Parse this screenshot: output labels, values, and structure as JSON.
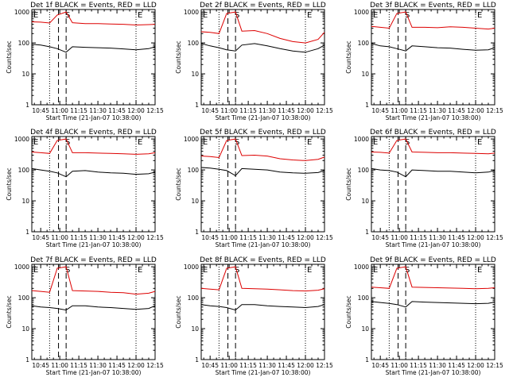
{
  "figure_title": "",
  "chart_data": [
    {
      "type": "line",
      "title": "Det 1f BLACK = Events, RED = LLD",
      "xlabel": "Start Time (21-Jan-07 10:38:00)",
      "ylabel": "Counts/sec",
      "x_ticks": [
        "10:45",
        "11:00",
        "11:15",
        "11:30",
        "11:45",
        "12:00",
        "12:15"
      ],
      "x_range": [
        "10:38",
        "12:15"
      ],
      "y_ticks": [
        "1",
        "10",
        "100",
        "1000"
      ],
      "y_scale": "log",
      "ylim": [
        1,
        1200
      ],
      "markers": [
        {
          "label": "E",
          "time": "10:38"
        },
        {
          "label": "S",
          "time": "11:03"
        },
        {
          "label": "E",
          "time": "12:00"
        }
      ],
      "dotted_lines": [
        "10:52",
        "12:00"
      ],
      "dashed_lines": [
        "10:59",
        "11:05"
      ],
      "series": [
        {
          "name": "Events",
          "color": "#000000",
          "x": [
            "10:38",
            "10:45",
            "10:52",
            "10:58",
            "11:05",
            "11:10",
            "11:20",
            "11:30",
            "11:40",
            "11:50",
            "12:00",
            "12:10",
            "12:15"
          ],
          "values": [
            90,
            85,
            75,
            65,
            50,
            75,
            72,
            70,
            68,
            64,
            60,
            65,
            75
          ]
        },
        {
          "name": "LLD",
          "color": "#dd0000",
          "x": [
            "10:38",
            "10:45",
            "10:52",
            "10:58",
            "11:05",
            "11:10",
            "11:20",
            "11:30",
            "11:40",
            "11:50",
            "12:00",
            "12:10",
            "12:15"
          ],
          "values": [
            480,
            470,
            440,
            800,
            1000,
            450,
            420,
            420,
            410,
            400,
            380,
            390,
            400
          ]
        }
      ]
    },
    {
      "type": "line",
      "title": "Det 2f BLACK = Events, RED = LLD",
      "xlabel": "Start Time (21-Jan-07 10:38:00)",
      "ylabel": "Counts/sec",
      "x_ticks": [
        "10:45",
        "11:00",
        "11:15",
        "11:30",
        "11:45",
        "12:00",
        "12:15"
      ],
      "x_range": [
        "10:38",
        "12:15"
      ],
      "y_ticks": [
        "1",
        "10",
        "100",
        "1000"
      ],
      "y_scale": "log",
      "ylim": [
        1,
        1200
      ],
      "markers": [
        {
          "label": "E",
          "time": "10:38"
        },
        {
          "label": "S",
          "time": "11:03"
        },
        {
          "label": "E",
          "time": "12:00"
        }
      ],
      "dotted_lines": [
        "10:52",
        "12:00"
      ],
      "dashed_lines": [
        "10:59",
        "11:05"
      ],
      "series": [
        {
          "name": "Events",
          "color": "#000000",
          "x": [
            "10:38",
            "10:45",
            "10:52",
            "10:58",
            "11:05",
            "11:10",
            "11:20",
            "11:30",
            "11:40",
            "11:50",
            "12:00",
            "12:10",
            "12:15"
          ],
          "values": [
            95,
            80,
            70,
            60,
            55,
            85,
            95,
            80,
            65,
            55,
            50,
            65,
            85
          ]
        },
        {
          "name": "LLD",
          "color": "#dd0000",
          "x": [
            "10:38",
            "10:45",
            "10:52",
            "10:58",
            "11:05",
            "11:10",
            "11:20",
            "11:30",
            "11:40",
            "11:50",
            "12:00",
            "12:10",
            "12:15"
          ],
          "values": [
            230,
            220,
            200,
            900,
            1000,
            240,
            250,
            200,
            140,
            110,
            100,
            130,
            220
          ]
        }
      ]
    },
    {
      "type": "line",
      "title": "Det 3f BLACK = Events, RED = LLD",
      "xlabel": "Start Time (21-Jan-07 10:38:00)",
      "ylabel": "Counts/sec",
      "x_ticks": [
        "10:45",
        "11:00",
        "11:15",
        "11:30",
        "11:45",
        "12:00",
        "12:15"
      ],
      "x_range": [
        "10:38",
        "12:15"
      ],
      "y_ticks": [
        "1",
        "10",
        "100",
        "1000"
      ],
      "y_scale": "log",
      "ylim": [
        1,
        1200
      ],
      "markers": [
        {
          "label": "E",
          "time": "10:38"
        },
        {
          "label": "S",
          "time": "11:03"
        },
        {
          "label": "E",
          "time": "12:00"
        }
      ],
      "dotted_lines": [
        "10:52",
        "12:00"
      ],
      "dashed_lines": [
        "10:59",
        "11:05"
      ],
      "series": [
        {
          "name": "Events",
          "color": "#000000",
          "x": [
            "10:38",
            "10:45",
            "10:52",
            "10:58",
            "11:05",
            "11:10",
            "11:20",
            "11:30",
            "11:40",
            "11:50",
            "12:00",
            "12:10",
            "12:15"
          ],
          "values": [
            95,
            80,
            75,
            65,
            55,
            80,
            75,
            70,
            68,
            62,
            58,
            60,
            70
          ]
        },
        {
          "name": "LLD",
          "color": "#dd0000",
          "x": [
            "10:38",
            "10:45",
            "10:52",
            "10:58",
            "11:05",
            "11:10",
            "11:20",
            "11:30",
            "11:40",
            "11:50",
            "12:00",
            "12:10",
            "12:15"
          ],
          "values": [
            340,
            320,
            300,
            900,
            1000,
            320,
            320,
            310,
            330,
            320,
            300,
            280,
            300
          ]
        }
      ]
    },
    {
      "type": "line",
      "title": "Det 4f BLACK = Events, RED = LLD",
      "xlabel": "Start Time (21-Jan-07 10:38:00)",
      "ylabel": "Counts/sec",
      "x_ticks": [
        "10:45",
        "11:00",
        "11:15",
        "11:30",
        "11:45",
        "12:00",
        "12:15"
      ],
      "x_range": [
        "10:38",
        "12:15"
      ],
      "y_ticks": [
        "1",
        "10",
        "100",
        "1000"
      ],
      "y_scale": "log",
      "ylim": [
        1,
        1200
      ],
      "markers": [
        {
          "label": "E",
          "time": "10:38"
        },
        {
          "label": "S",
          "time": "11:03"
        },
        {
          "label": "E",
          "time": "12:00"
        }
      ],
      "dotted_lines": [
        "10:52",
        "12:00"
      ],
      "dashed_lines": [
        "10:59",
        "11:05"
      ],
      "series": [
        {
          "name": "Events",
          "color": "#000000",
          "x": [
            "10:38",
            "10:45",
            "10:52",
            "10:58",
            "11:05",
            "11:10",
            "11:20",
            "11:30",
            "11:40",
            "11:50",
            "12:00",
            "12:10",
            "12:15"
          ],
          "values": [
            110,
            100,
            90,
            80,
            60,
            90,
            95,
            85,
            80,
            78,
            72,
            75,
            85
          ]
        },
        {
          "name": "LLD",
          "color": "#dd0000",
          "x": [
            "10:38",
            "10:45",
            "10:52",
            "10:58",
            "11:05",
            "11:10",
            "11:20",
            "11:30",
            "11:40",
            "11:50",
            "12:00",
            "12:10",
            "12:15"
          ],
          "values": [
            380,
            360,
            340,
            900,
            1000,
            360,
            360,
            350,
            340,
            330,
            320,
            330,
            360
          ]
        }
      ]
    },
    {
      "type": "line",
      "title": "Det 5f BLACK = Events, RED = LLD",
      "xlabel": "Start Time (21-Jan-07 10:38:00)",
      "ylabel": "Counts/sec",
      "x_ticks": [
        "10:45",
        "11:00",
        "11:15",
        "11:30",
        "11:45",
        "12:00",
        "12:15"
      ],
      "x_range": [
        "10:38",
        "12:15"
      ],
      "y_ticks": [
        "1",
        "10",
        "100",
        "1000"
      ],
      "y_scale": "log",
      "ylim": [
        1,
        1200
      ],
      "markers": [
        {
          "label": "E",
          "time": "10:38"
        },
        {
          "label": "S",
          "time": "11:03"
        },
        {
          "label": "E",
          "time": "12:00"
        }
      ],
      "dotted_lines": [
        "10:52",
        "12:00"
      ],
      "dashed_lines": [
        "10:59",
        "11:05"
      ],
      "series": [
        {
          "name": "Events",
          "color": "#000000",
          "x": [
            "10:38",
            "10:45",
            "10:52",
            "10:58",
            "11:05",
            "11:10",
            "11:20",
            "11:30",
            "11:40",
            "11:50",
            "12:00",
            "12:10",
            "12:15"
          ],
          "values": [
            120,
            115,
            105,
            95,
            65,
            110,
            105,
            100,
            85,
            80,
            78,
            82,
            95
          ]
        },
        {
          "name": "LLD",
          "color": "#dd0000",
          "x": [
            "10:38",
            "10:45",
            "10:52",
            "10:58",
            "11:05",
            "11:10",
            "11:20",
            "11:30",
            "11:40",
            "11:50",
            "12:00",
            "12:10",
            "12:15"
          ],
          "values": [
            280,
            270,
            250,
            900,
            1000,
            290,
            300,
            280,
            230,
            210,
            200,
            220,
            260
          ]
        }
      ]
    },
    {
      "type": "line",
      "title": "Det 6f BLACK = Events, RED = LLD",
      "xlabel": "Start Time (21-Jan-07 10:38:00)",
      "ylabel": "Counts/sec",
      "x_ticks": [
        "10:45",
        "11:00",
        "11:15",
        "11:30",
        "11:45",
        "12:00",
        "12:15"
      ],
      "x_range": [
        "10:38",
        "12:15"
      ],
      "y_ticks": [
        "1",
        "10",
        "100",
        "1000"
      ],
      "y_scale": "log",
      "ylim": [
        1,
        1200
      ],
      "markers": [
        {
          "label": "E",
          "time": "10:38"
        },
        {
          "label": "S",
          "time": "11:03"
        },
        {
          "label": "E",
          "time": "12:00"
        }
      ],
      "dotted_lines": [
        "10:52",
        "12:00"
      ],
      "dashed_lines": [
        "10:59",
        "11:05"
      ],
      "series": [
        {
          "name": "Events",
          "color": "#000000",
          "x": [
            "10:38",
            "10:45",
            "10:52",
            "10:58",
            "11:05",
            "11:10",
            "11:20",
            "11:30",
            "11:40",
            "11:50",
            "12:00",
            "12:10",
            "12:15"
          ],
          "values": [
            110,
            100,
            95,
            85,
            60,
            100,
            95,
            90,
            90,
            85,
            80,
            85,
            95
          ]
        },
        {
          "name": "LLD",
          "color": "#dd0000",
          "x": [
            "10:38",
            "10:45",
            "10:52",
            "10:58",
            "11:05",
            "11:10",
            "11:20",
            "11:30",
            "11:40",
            "11:50",
            "12:00",
            "12:10",
            "12:15"
          ],
          "values": [
            380,
            370,
            350,
            900,
            1000,
            380,
            370,
            360,
            360,
            350,
            340,
            330,
            350
          ]
        }
      ]
    },
    {
      "type": "line",
      "title": "Det 7f BLACK = Events, RED = LLD",
      "xlabel": "Start Time (21-Jan-07 10:38:00)",
      "ylabel": "Counts/sec",
      "x_ticks": [
        "10:45",
        "11:00",
        "11:15",
        "11:30",
        "11:45",
        "12:00",
        "12:15"
      ],
      "x_range": [
        "10:38",
        "12:15"
      ],
      "y_ticks": [
        "1",
        "10",
        "100",
        "1000"
      ],
      "y_scale": "log",
      "ylim": [
        1,
        1200
      ],
      "markers": [
        {
          "label": "E",
          "time": "10:38"
        },
        {
          "label": "S",
          "time": "11:03"
        },
        {
          "label": "E",
          "time": "12:00"
        }
      ],
      "dotted_lines": [
        "10:52",
        "12:00"
      ],
      "dashed_lines": [
        "10:59",
        "11:05"
      ],
      "series": [
        {
          "name": "Events",
          "color": "#000000",
          "x": [
            "10:38",
            "10:45",
            "10:52",
            "10:58",
            "11:05",
            "11:10",
            "11:20",
            "11:30",
            "11:40",
            "11:50",
            "12:00",
            "12:10",
            "12:15"
          ],
          "values": [
            55,
            50,
            48,
            45,
            40,
            55,
            55,
            50,
            48,
            45,
            42,
            45,
            55
          ]
        },
        {
          "name": "LLD",
          "color": "#dd0000",
          "x": [
            "10:38",
            "10:45",
            "10:52",
            "10:58",
            "11:05",
            "11:10",
            "11:20",
            "11:30",
            "11:40",
            "11:50",
            "12:00",
            "12:10",
            "12:15"
          ],
          "values": [
            170,
            160,
            150,
            900,
            1000,
            170,
            165,
            160,
            150,
            145,
            130,
            140,
            160
          ]
        }
      ]
    },
    {
      "type": "line",
      "title": "Det 8f BLACK = Events, RED = LLD",
      "xlabel": "Start Time (21-Jan-07 10:38:00)",
      "ylabel": "Counts/sec",
      "x_ticks": [
        "10:45",
        "11:00",
        "11:15",
        "11:30",
        "11:45",
        "12:00",
        "12:15"
      ],
      "x_range": [
        "10:38",
        "12:15"
      ],
      "y_ticks": [
        "1",
        "10",
        "100",
        "1000"
      ],
      "y_scale": "log",
      "ylim": [
        1,
        1200
      ],
      "markers": [
        {
          "label": "E",
          "time": "10:38"
        },
        {
          "label": "S",
          "time": "11:03"
        },
        {
          "label": "E",
          "time": "12:00"
        }
      ],
      "dotted_lines": [
        "10:52",
        "12:00"
      ],
      "dashed_lines": [
        "10:59",
        "11:05"
      ],
      "series": [
        {
          "name": "Events",
          "color": "#000000",
          "x": [
            "10:38",
            "10:45",
            "10:52",
            "10:58",
            "11:05",
            "11:10",
            "11:20",
            "11:30",
            "11:40",
            "11:50",
            "12:00",
            "12:10",
            "12:15"
          ],
          "values": [
            60,
            55,
            52,
            48,
            40,
            60,
            60,
            55,
            52,
            50,
            48,
            52,
            60
          ]
        },
        {
          "name": "LLD",
          "color": "#dd0000",
          "x": [
            "10:38",
            "10:45",
            "10:52",
            "10:58",
            "11:05",
            "11:10",
            "11:20",
            "11:30",
            "11:40",
            "11:50",
            "12:00",
            "12:10",
            "12:15"
          ],
          "values": [
            200,
            190,
            180,
            900,
            1000,
            200,
            195,
            190,
            180,
            170,
            165,
            175,
            195
          ]
        }
      ]
    },
    {
      "type": "line",
      "title": "Det 9f BLACK = Events, RED = LLD",
      "xlabel": "Start Time (21-Jan-07 10:38:00)",
      "ylabel": "Counts/sec",
      "x_ticks": [
        "10:45",
        "11:00",
        "11:15",
        "11:30",
        "11:45",
        "12:00",
        "12:15"
      ],
      "x_range": [
        "10:38",
        "12:15"
      ],
      "y_ticks": [
        "1",
        "10",
        "100",
        "1000"
      ],
      "y_scale": "log",
      "ylim": [
        1,
        1200
      ],
      "markers": [
        {
          "label": "E",
          "time": "10:38"
        },
        {
          "label": "S",
          "time": "11:03"
        },
        {
          "label": "E",
          "time": "12:00"
        }
      ],
      "dotted_lines": [
        "10:52",
        "12:00"
      ],
      "dashed_lines": [
        "10:59",
        "11:05"
      ],
      "series": [
        {
          "name": "Events",
          "color": "#000000",
          "x": [
            "10:38",
            "10:45",
            "10:52",
            "10:58",
            "11:05",
            "11:10",
            "11:20",
            "11:30",
            "11:40",
            "11:50",
            "12:00",
            "12:10",
            "12:15"
          ],
          "values": [
            75,
            70,
            65,
            60,
            50,
            75,
            72,
            70,
            68,
            66,
            64,
            66,
            72
          ]
        },
        {
          "name": "LLD",
          "color": "#dd0000",
          "x": [
            "10:38",
            "10:45",
            "10:52",
            "10:58",
            "11:05",
            "11:10",
            "11:20",
            "11:30",
            "11:40",
            "11:50",
            "12:00",
            "12:10",
            "12:15"
          ],
          "values": [
            220,
            210,
            200,
            900,
            1000,
            220,
            215,
            210,
            205,
            200,
            195,
            200,
            210
          ]
        }
      ]
    }
  ]
}
